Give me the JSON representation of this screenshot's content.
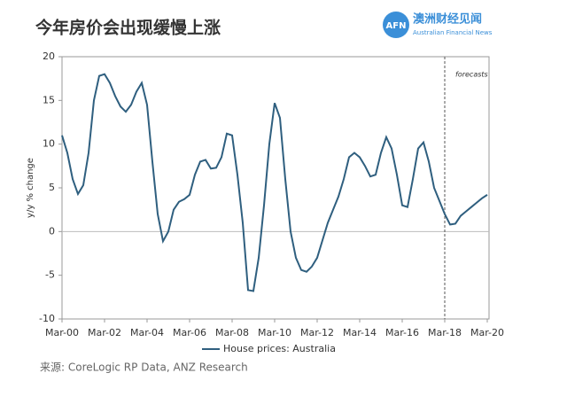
{
  "header": {
    "title": "今年房价会出现缓慢上涨",
    "logo_mark": "AFN",
    "logo_name": "澳洲财经见闻",
    "logo_sub": "Australian Financial News"
  },
  "chart_data": {
    "type": "line",
    "y_label": "y/y % change",
    "x": [
      "Mar-00",
      "Jun-00",
      "Sep-00",
      "Dec-00",
      "Mar-01",
      "Jun-01",
      "Sep-01",
      "Dec-01",
      "Mar-02",
      "Jun-02",
      "Sep-02",
      "Dec-02",
      "Mar-03",
      "Jun-03",
      "Sep-03",
      "Dec-03",
      "Mar-04",
      "Jun-04",
      "Sep-04",
      "Dec-04",
      "Mar-05",
      "Jun-05",
      "Sep-05",
      "Dec-05",
      "Mar-06",
      "Jun-06",
      "Sep-06",
      "Dec-06",
      "Mar-07",
      "Jun-07",
      "Sep-07",
      "Dec-07",
      "Mar-08",
      "Jun-08",
      "Sep-08",
      "Dec-08",
      "Mar-09",
      "Jun-09",
      "Sep-09",
      "Dec-09",
      "Mar-10",
      "Jun-10",
      "Sep-10",
      "Dec-10",
      "Mar-11",
      "Jun-11",
      "Sep-11",
      "Dec-11",
      "Mar-12",
      "Jun-12",
      "Sep-12",
      "Dec-12",
      "Mar-13",
      "Jun-13",
      "Sep-13",
      "Dec-13",
      "Mar-14",
      "Jun-14",
      "Sep-14",
      "Dec-14",
      "Mar-15",
      "Jun-15",
      "Sep-15",
      "Dec-15",
      "Mar-16",
      "Jun-16",
      "Sep-16",
      "Dec-16",
      "Mar-17",
      "Jun-17",
      "Sep-17",
      "Dec-17",
      "Mar-18",
      "Jun-18",
      "Sep-18",
      "Dec-18",
      "Mar-19",
      "Jun-19",
      "Sep-19",
      "Dec-19",
      "Mar-20"
    ],
    "series": [
      {
        "name": "House prices: Australia",
        "color": "#2f5f7f",
        "values": [
          11,
          9,
          6,
          4.3,
          5.3,
          9,
          15,
          17.8,
          18,
          17,
          15.5,
          14.3,
          13.7,
          14.5,
          16,
          17,
          14.5,
          8,
          2,
          -1.1,
          0,
          2.5,
          3.4,
          3.7,
          4.2,
          6.5,
          8,
          8.2,
          7.2,
          7.3,
          8.5,
          11.2,
          11,
          6.5,
          1,
          -6.7,
          -6.8,
          -3,
          3,
          10,
          14.7,
          13,
          6,
          0,
          -3,
          -4.4,
          -4.6,
          -4,
          -3,
          -1,
          1,
          2.5,
          4,
          6,
          8.5,
          9,
          8.5,
          7.5,
          6.3,
          6.5,
          9,
          10.8,
          9.5,
          6.5,
          3,
          2.8,
          6,
          9.5,
          10.2,
          8,
          5,
          3.5,
          2,
          0.8,
          0.9,
          1.8,
          2.3,
          2.8,
          3.3,
          3.8,
          4.2
        ]
      }
    ],
    "ylim": [
      -10,
      20
    ],
    "yticks": [
      -10,
      -5,
      0,
      5,
      10,
      15,
      20
    ],
    "annotations": [
      {
        "text": "forecasts",
        "x": "Mar-18"
      }
    ],
    "legend": "bottom"
  },
  "source": "来源: CoreLogic RP Data, ANZ Research"
}
